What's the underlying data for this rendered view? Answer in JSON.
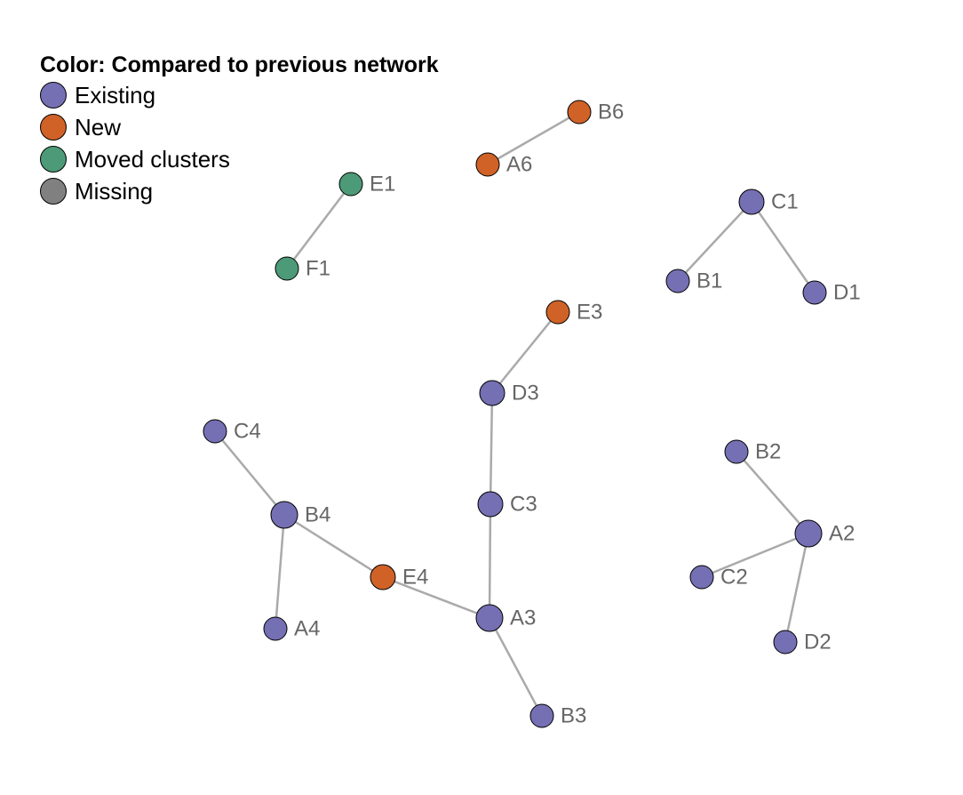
{
  "legend": {
    "title": "Color: Compared to previous network",
    "items": [
      {
        "key": "existing",
        "label": "Existing",
        "color": "#7570b3"
      },
      {
        "key": "new",
        "label": "New",
        "color": "#d06227"
      },
      {
        "key": "moved",
        "label": "Moved clusters",
        "color": "#4c9a77"
      },
      {
        "key": "missing",
        "label": "Missing",
        "color": "#808080"
      }
    ]
  },
  "nodes": [
    {
      "id": "B6",
      "status": "new"
    },
    {
      "id": "A6",
      "status": "new"
    },
    {
      "id": "E1",
      "status": "moved"
    },
    {
      "id": "F1",
      "status": "moved"
    },
    {
      "id": "C1",
      "status": "existing"
    },
    {
      "id": "B1",
      "status": "existing"
    },
    {
      "id": "D1",
      "status": "existing"
    },
    {
      "id": "E3",
      "status": "new"
    },
    {
      "id": "D3",
      "status": "existing"
    },
    {
      "id": "C3",
      "status": "existing"
    },
    {
      "id": "A3",
      "status": "existing"
    },
    {
      "id": "B3",
      "status": "existing"
    },
    {
      "id": "C4",
      "status": "existing"
    },
    {
      "id": "B4",
      "status": "existing"
    },
    {
      "id": "E4",
      "status": "new"
    },
    {
      "id": "A4",
      "status": "existing"
    },
    {
      "id": "B2",
      "status": "existing"
    },
    {
      "id": "A2",
      "status": "existing"
    },
    {
      "id": "C2",
      "status": "existing"
    },
    {
      "id": "D2",
      "status": "existing"
    }
  ],
  "edges": [
    [
      "A6",
      "B6"
    ],
    [
      "E1",
      "F1"
    ],
    [
      "C1",
      "B1"
    ],
    [
      "C1",
      "D1"
    ],
    [
      "E3",
      "D3"
    ],
    [
      "D3",
      "C3"
    ],
    [
      "C3",
      "A3"
    ],
    [
      "A3",
      "B3"
    ],
    [
      "A3",
      "E4"
    ],
    [
      "E4",
      "B4"
    ],
    [
      "B4",
      "C4"
    ],
    [
      "B4",
      "A4"
    ],
    [
      "B2",
      "A2"
    ],
    [
      "A2",
      "C2"
    ],
    [
      "A2",
      "D2"
    ]
  ]
}
